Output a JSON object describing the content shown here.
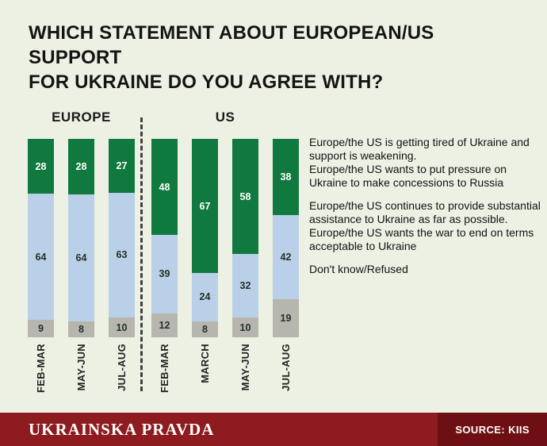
{
  "title": "WHICH STATEMENT ABOUT EUROPEAN/US SUPPORT\nFOR UKRAINE DO YOU AGREE WITH?",
  "colors": {
    "background": "#edf1e4",
    "green": "#10793f",
    "light_blue": "#bad0e8",
    "gray": "#b7b6ae",
    "footer_red": "#8e1b20",
    "source_red": "#6e1013"
  },
  "chart_data": {
    "type": "bar",
    "stacked": true,
    "unit": "%",
    "series_order": [
      "tired",
      "assistance",
      "refused"
    ],
    "series_colors": {
      "tired": "#10793f",
      "assistance": "#bad0e8",
      "refused": "#b7b6ae"
    },
    "series_labels": {
      "tired": "Europe/the US is getting tired of Ukraine and support is weakening.\nEurope/the US wants to put pressure on Ukraine to make concessions to Russia",
      "assistance": "Europe/the US continues to provide substantial assistance to Ukraine as far as possible.\nEurope/the US wants the war to end on terms acceptable to Ukraine",
      "refused": "Don't know/Refused"
    },
    "groups": [
      {
        "label": "EUROPE",
        "bars": [
          {
            "category": "FEB-MAR",
            "tired": 28,
            "assistance": 64,
            "refused": 9
          },
          {
            "category": "MAY-JUN",
            "tired": 28,
            "assistance": 64,
            "refused": 8
          },
          {
            "category": "JUL-AUG",
            "tired": 27,
            "assistance": 63,
            "refused": 10
          }
        ]
      },
      {
        "label": "US",
        "bars": [
          {
            "category": "FEB-MAR",
            "tired": 48,
            "assistance": 39,
            "refused": 12
          },
          {
            "category": "MARCH",
            "tired": 67,
            "assistance": 24,
            "refused": 8
          },
          {
            "category": "MAY-JUN",
            "tired": 58,
            "assistance": 32,
            "refused": 10
          },
          {
            "category": "JUL-AUG",
            "tired": 38,
            "assistance": 42,
            "refused": 19
          }
        ]
      }
    ]
  },
  "footer": {
    "brand": "UKRAINSKA PRAVDA",
    "source": "SOURCE: KIIS"
  }
}
